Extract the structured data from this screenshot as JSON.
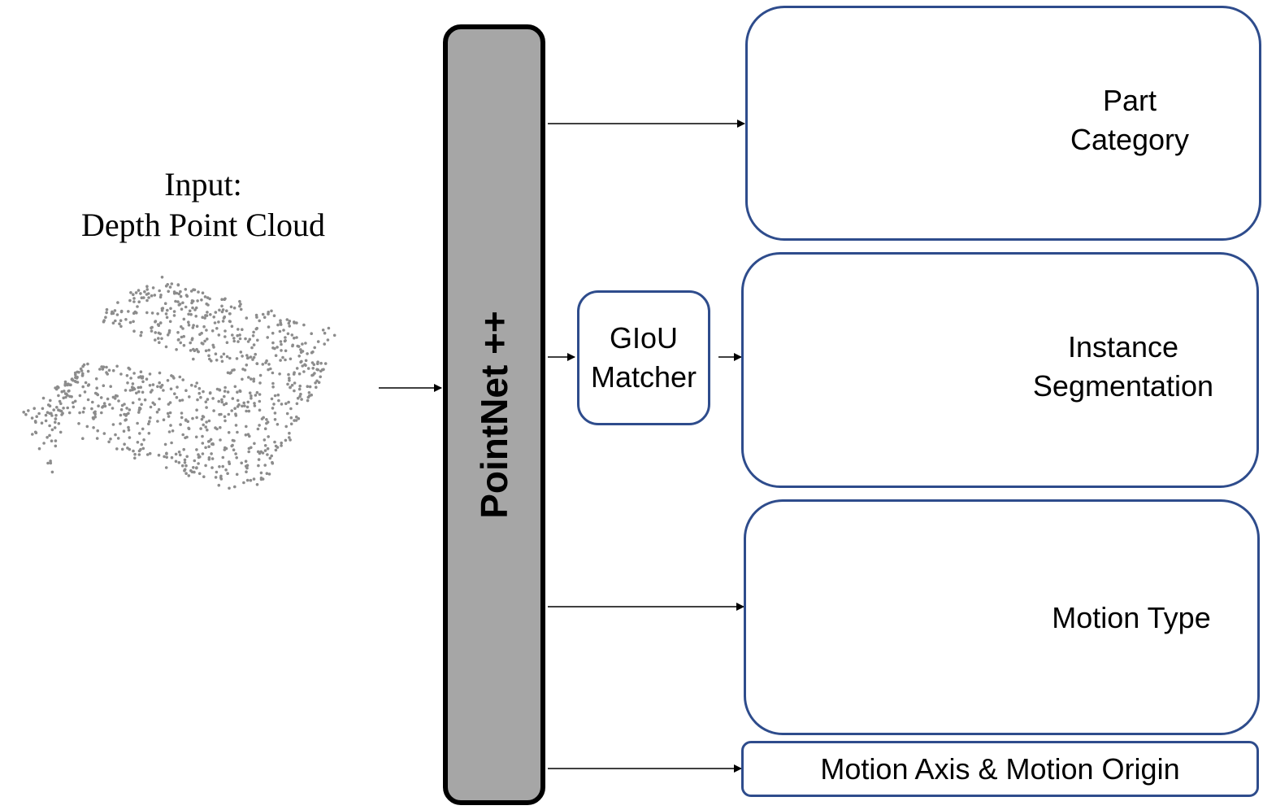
{
  "input": {
    "line1": "Input:",
    "line2": "Depth Point Cloud"
  },
  "backbone": {
    "label": "PointNet ++"
  },
  "matcher": {
    "line1": "GIoU",
    "line2": "Matcher"
  },
  "outputs": {
    "part_category": {
      "line1": "Part",
      "line2": "Category"
    },
    "instance_segmentation": {
      "line1": "Instance",
      "line2": "Segmentation"
    },
    "motion_type": {
      "label": "Motion Type"
    },
    "motion_axis_origin": {
      "label": "Motion Axis & Motion Origin"
    }
  },
  "colors": {
    "input_points": "#8c8c8c",
    "box_border": "#2e4c8c",
    "backbone_fill": "#a6a6a6",
    "red": "#d03a3a",
    "orange": "#e8b24a",
    "purple": "#b84ee0",
    "green": "#7fe05a"
  }
}
